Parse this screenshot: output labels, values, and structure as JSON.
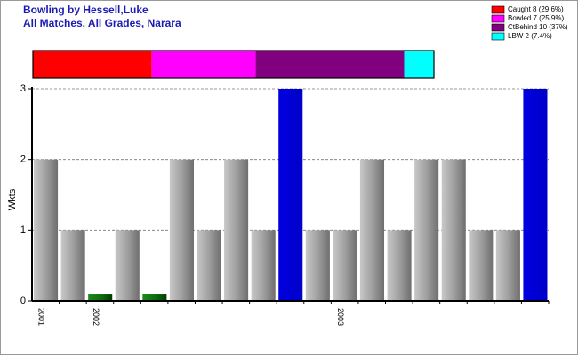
{
  "chart_data": {
    "type": "bar",
    "title": "Bowling by Hessell,Luke",
    "subtitle": "All Matches, All Grades, Narara",
    "y_label": "Wkts",
    "categories": [
      "2001",
      null,
      "2002",
      null,
      null,
      null,
      null,
      null,
      null,
      null,
      null,
      "2003",
      null,
      null,
      null,
      null,
      null,
      null,
      null
    ],
    "values": [
      2,
      1,
      0.1,
      1,
      0.1,
      2,
      1,
      2,
      1,
      3,
      1,
      1,
      2,
      1,
      2,
      2,
      1,
      1,
      3
    ],
    "colors": [
      "gray",
      "gray",
      "green",
      "gray",
      "green",
      "gray",
      "gray",
      "gray",
      "gray",
      "blue",
      "gray",
      "gray",
      "gray",
      "gray",
      "gray",
      "gray",
      "gray",
      "gray",
      "blue"
    ],
    "ylim": [
      0,
      3
    ],
    "yticks": [
      0,
      1,
      2,
      3
    ],
    "grid": true,
    "legend": [
      {
        "label": "Caught 8 (29.6%)",
        "value": 8,
        "color": "#ff0000"
      },
      {
        "label": "Bowled 7 (25.9%)",
        "value": 7,
        "color": "#ff00ff"
      },
      {
        "label": "CtBehind 10 (37%)",
        "value": 10,
        "color": "#800080"
      },
      {
        "label": "LBW 2 (7.4%)",
        "value": 2,
        "color": "#00ffff"
      }
    ]
  }
}
